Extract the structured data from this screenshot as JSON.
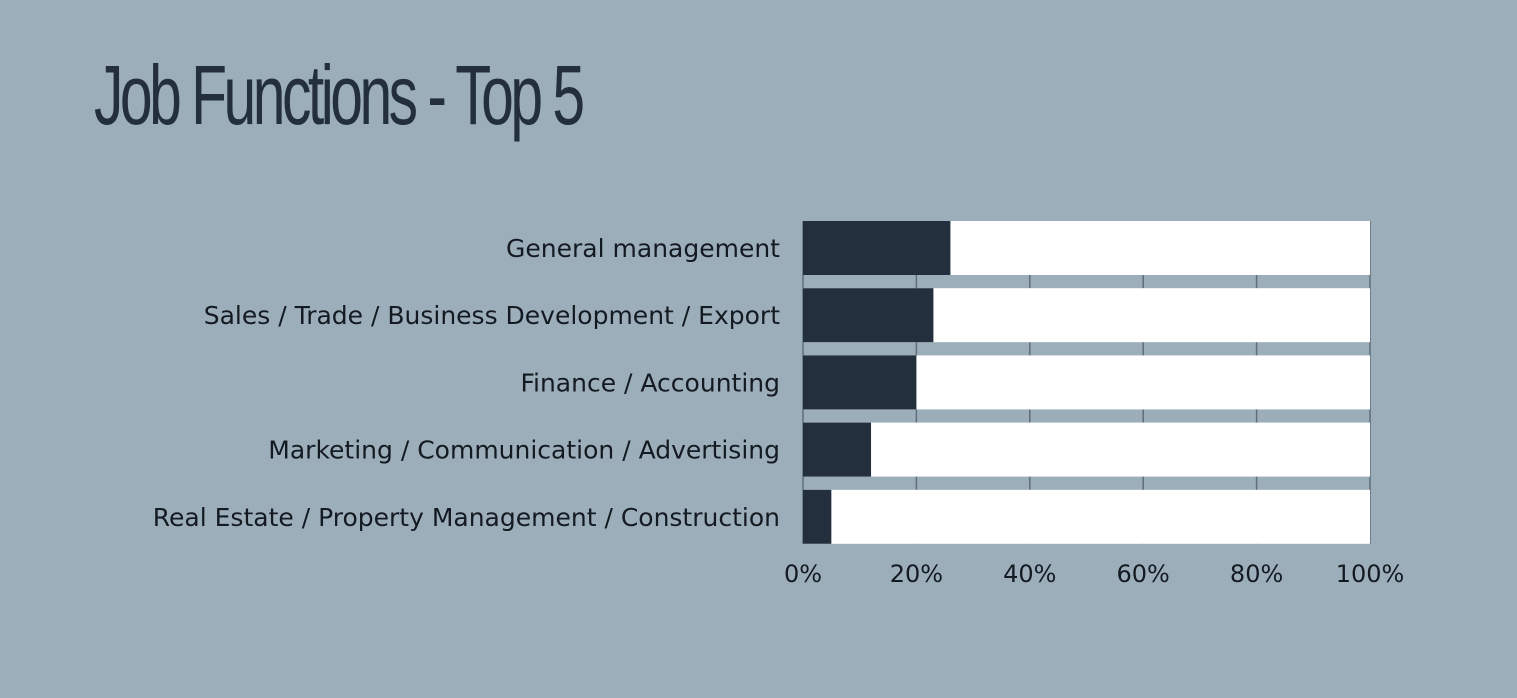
{
  "title": "Job Functions - Top 5",
  "colors": {
    "background": "#9daebb",
    "bar": "#232f3d",
    "bar_track": "#ffffff",
    "text": "#141a21",
    "grid": "#5f6e7a"
  },
  "chart_data": {
    "type": "bar",
    "orientation": "horizontal",
    "stacked_to_100": true,
    "categories": [
      "General management",
      "Sales / Trade / Business Development / Export",
      "Finance / Accounting",
      "Marketing / Communication / Advertising",
      "Real Estate / Property Management / Construction"
    ],
    "values": [
      26,
      23,
      20,
      12,
      5
    ],
    "xlim": [
      0,
      100
    ],
    "xticks": [
      0,
      20,
      40,
      60,
      80,
      100
    ],
    "xtick_labels": [
      "0%",
      "20%",
      "40%",
      "60%",
      "80%",
      "100%"
    ],
    "grid": true,
    "legend": "none"
  }
}
